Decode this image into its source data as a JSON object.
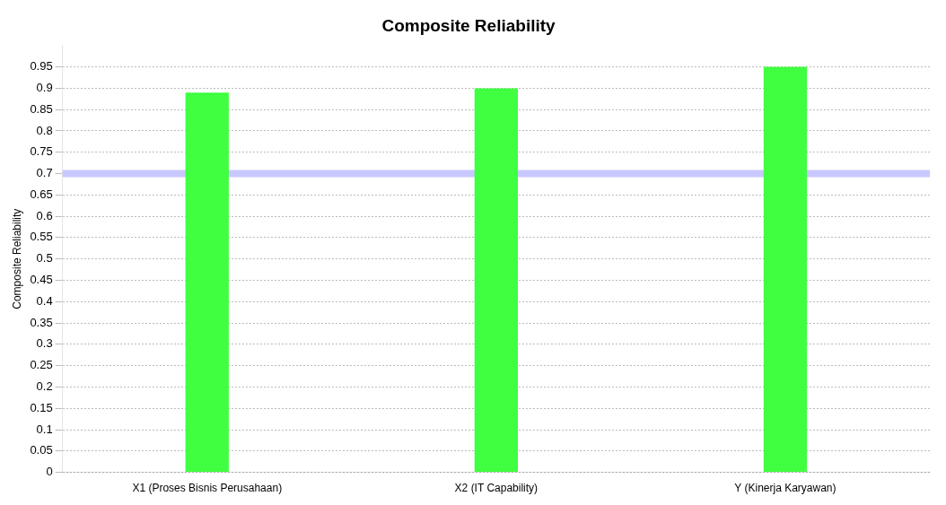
{
  "chart_data": {
    "type": "bar",
    "title": "Composite Reliability",
    "ylabel": "Composite Reliability",
    "categories": [
      "X1 (Proses Bisnis Perusahaan)",
      "X2 (IT Capability)",
      "Y (Kinerja Karyawan)"
    ],
    "values": [
      0.89,
      0.9,
      0.95
    ],
    "color": "#40ff40",
    "ylim": [
      0,
      1
    ],
    "yticks": [
      0,
      0.05,
      0.1,
      0.15,
      0.2,
      0.25,
      0.3,
      0.35,
      0.4,
      0.45,
      0.5,
      0.55,
      0.6,
      0.65,
      0.7,
      0.75,
      0.8,
      0.85,
      0.9,
      0.95
    ],
    "grid": "y",
    "legend": false,
    "ref_lines": [
      {
        "axis": "y",
        "value": 0.7,
        "color": "#c8c8ff"
      }
    ]
  }
}
